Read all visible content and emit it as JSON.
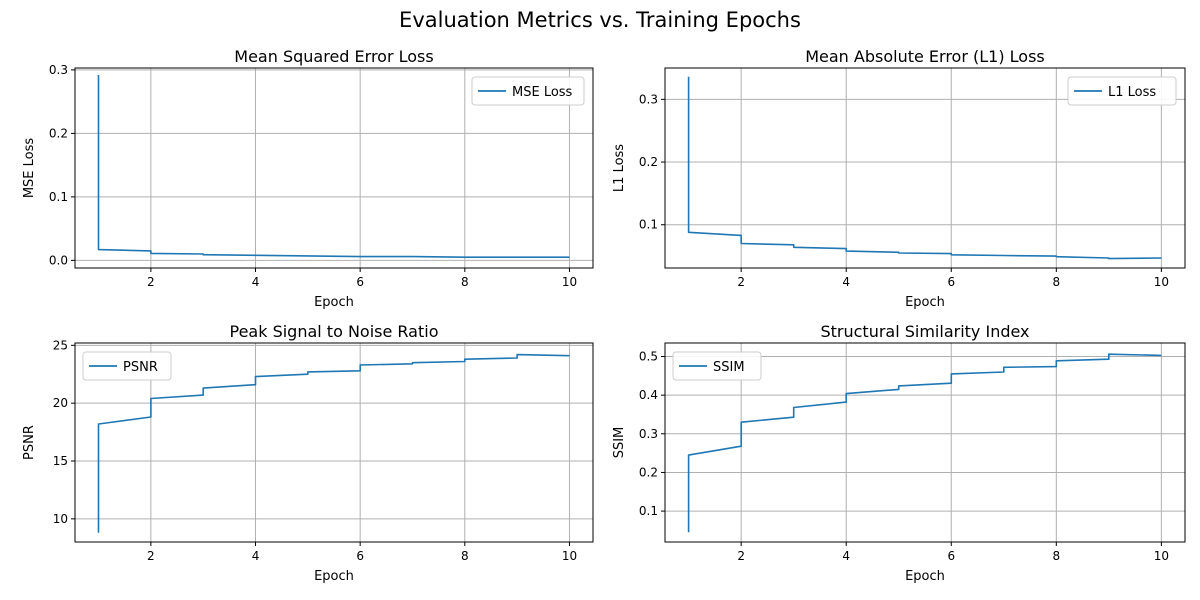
{
  "figure": {
    "suptitle": "Evaluation Metrics vs. Training Epochs"
  },
  "colors": {
    "line": "#1f77b4",
    "grid": "#b0b0b0",
    "axis": "#000000"
  },
  "chart_data": [
    {
      "type": "line",
      "title": "Mean Squared Error Loss",
      "xlabel": "Epoch",
      "ylabel": "MSE Loss",
      "xlim": [
        0.55,
        10.45
      ],
      "ylim": [
        -0.012,
        0.303
      ],
      "xticks": [
        2,
        4,
        6,
        8,
        10
      ],
      "yticks": [
        0.0,
        0.1,
        0.2,
        0.3
      ],
      "ytick_labels": [
        "0.0",
        "0.1",
        "0.2",
        "0.3"
      ],
      "grid": true,
      "legend": "upper right",
      "series": [
        {
          "name": "MSE Loss",
          "x": [
            1,
            1,
            2,
            2,
            3,
            3,
            4,
            4,
            5,
            5,
            6,
            6,
            7,
            7,
            8,
            8,
            9,
            9,
            10
          ],
          "y": [
            0.292,
            0.017,
            0.015,
            0.011,
            0.01,
            0.009,
            0.008,
            0.008,
            0.007,
            0.007,
            0.006,
            0.006,
            0.006,
            0.006,
            0.005,
            0.005,
            0.005,
            0.005,
            0.005
          ]
        }
      ]
    },
    {
      "type": "line",
      "title": "Mean Absolute Error (L1) Loss",
      "xlabel": "Epoch",
      "ylabel": "L1 Loss",
      "xlim": [
        0.55,
        10.45
      ],
      "ylim": [
        0.031,
        0.35
      ],
      "xticks": [
        2,
        4,
        6,
        8,
        10
      ],
      "yticks": [
        0.1,
        0.2,
        0.3
      ],
      "ytick_labels": [
        "0.1",
        "0.2",
        "0.3"
      ],
      "grid": true,
      "legend": "upper right",
      "series": [
        {
          "name": "L1 Loss",
          "x": [
            1,
            1,
            2,
            2,
            3,
            3,
            4,
            4,
            5,
            5,
            6,
            6,
            7,
            7,
            8,
            8,
            9,
            9,
            10
          ],
          "y": [
            0.336,
            0.088,
            0.083,
            0.07,
            0.068,
            0.064,
            0.062,
            0.058,
            0.056,
            0.055,
            0.054,
            0.052,
            0.051,
            0.051,
            0.05,
            0.049,
            0.047,
            0.046,
            0.047
          ]
        }
      ]
    },
    {
      "type": "line",
      "title": "Peak Signal to Noise Ratio",
      "xlabel": "Epoch",
      "ylabel": "PSNR",
      "xlim": [
        0.55,
        10.45
      ],
      "ylim": [
        8.0,
        25.2
      ],
      "xticks": [
        2,
        4,
        6,
        8,
        10
      ],
      "yticks": [
        10,
        15,
        20,
        25
      ],
      "ytick_labels": [
        "10",
        "15",
        "20",
        "25"
      ],
      "grid": true,
      "legend": "upper left",
      "series": [
        {
          "name": "PSNR",
          "x": [
            1,
            1,
            2,
            2,
            3,
            3,
            4,
            4,
            5,
            5,
            6,
            6,
            7,
            7,
            8,
            8,
            9,
            9,
            10
          ],
          "y": [
            8.8,
            18.2,
            18.8,
            20.4,
            20.7,
            21.3,
            21.6,
            22.3,
            22.5,
            22.7,
            22.8,
            23.3,
            23.4,
            23.5,
            23.6,
            23.8,
            23.9,
            24.2,
            24.1
          ]
        }
      ]
    },
    {
      "type": "line",
      "title": "Structural Similarity Index",
      "xlabel": "Epoch",
      "ylabel": "SSIM",
      "xlim": [
        0.55,
        10.45
      ],
      "ylim": [
        0.02,
        0.535
      ],
      "xticks": [
        2,
        4,
        6,
        8,
        10
      ],
      "yticks": [
        0.1,
        0.2,
        0.3,
        0.4,
        0.5
      ],
      "ytick_labels": [
        "0.1",
        "0.2",
        "0.3",
        "0.4",
        "0.5"
      ],
      "grid": true,
      "legend": "upper left",
      "series": [
        {
          "name": "SSIM",
          "x": [
            1,
            1,
            2,
            2,
            3,
            3,
            4,
            4,
            5,
            5,
            6,
            6,
            7,
            7,
            8,
            8,
            9,
            9,
            10
          ],
          "y": [
            0.045,
            0.245,
            0.268,
            0.33,
            0.343,
            0.368,
            0.382,
            0.404,
            0.415,
            0.424,
            0.431,
            0.455,
            0.46,
            0.472,
            0.474,
            0.489,
            0.493,
            0.506,
            0.503
          ]
        }
      ]
    }
  ]
}
